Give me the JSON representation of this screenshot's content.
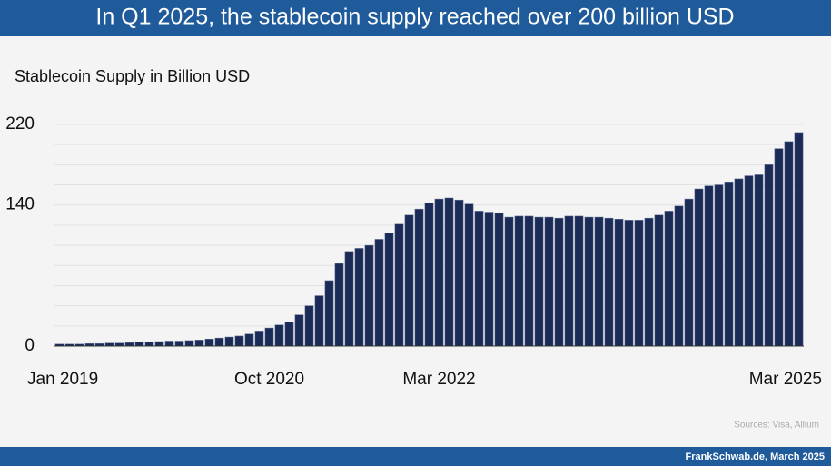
{
  "chart_data": {
    "type": "bar",
    "title": "In Q1 2025, the stablecoin supply reached over 200 billion USD",
    "subtitle": "Stablecoin Supply in Billion USD",
    "source": "Sources: Visa, Allium",
    "footer": "FrankSchwab.de, March 2025",
    "categories": [
      "Jan 2019",
      null,
      null,
      null,
      null,
      null,
      null,
      null,
      null,
      null,
      null,
      null,
      null,
      null,
      null,
      null,
      null,
      null,
      null,
      null,
      null,
      "Oct 2020",
      null,
      null,
      null,
      null,
      null,
      null,
      null,
      null,
      null,
      null,
      null,
      null,
      null,
      null,
      null,
      null,
      "Mar 2022",
      null,
      null,
      null,
      null,
      null,
      null,
      null,
      null,
      null,
      null,
      null,
      null,
      null,
      null,
      null,
      null,
      null,
      null,
      null,
      null,
      null,
      null,
      null,
      null,
      null,
      null,
      null,
      null,
      null,
      null,
      null,
      null,
      null,
      null,
      null,
      "Mar 2025"
    ],
    "values": [
      2,
      2,
      2,
      2.5,
      2.5,
      3,
      3,
      3.5,
      4,
      4,
      4.5,
      5,
      5,
      5.5,
      6,
      7,
      8,
      9,
      10,
      12,
      15,
      18,
      21,
      24,
      31,
      40,
      50,
      65,
      82,
      94,
      97,
      100,
      106,
      112,
      121,
      130,
      136,
      142,
      146,
      147,
      145,
      141,
      134,
      133,
      132,
      128,
      129,
      129,
      128,
      128,
      127,
      129,
      129,
      128,
      128,
      127,
      126,
      125,
      125,
      127,
      130,
      134,
      139,
      146,
      156,
      159,
      160,
      163,
      166,
      169,
      170,
      180,
      196,
      203,
      212
    ],
    "color": "#1b2b57",
    "ylim": [
      0,
      220
    ],
    "yticks": [
      0,
      140,
      220
    ],
    "y_gridlines": [
      20,
      40,
      60,
      80,
      100,
      120,
      140,
      160,
      180,
      200,
      220
    ],
    "grid": true
  }
}
